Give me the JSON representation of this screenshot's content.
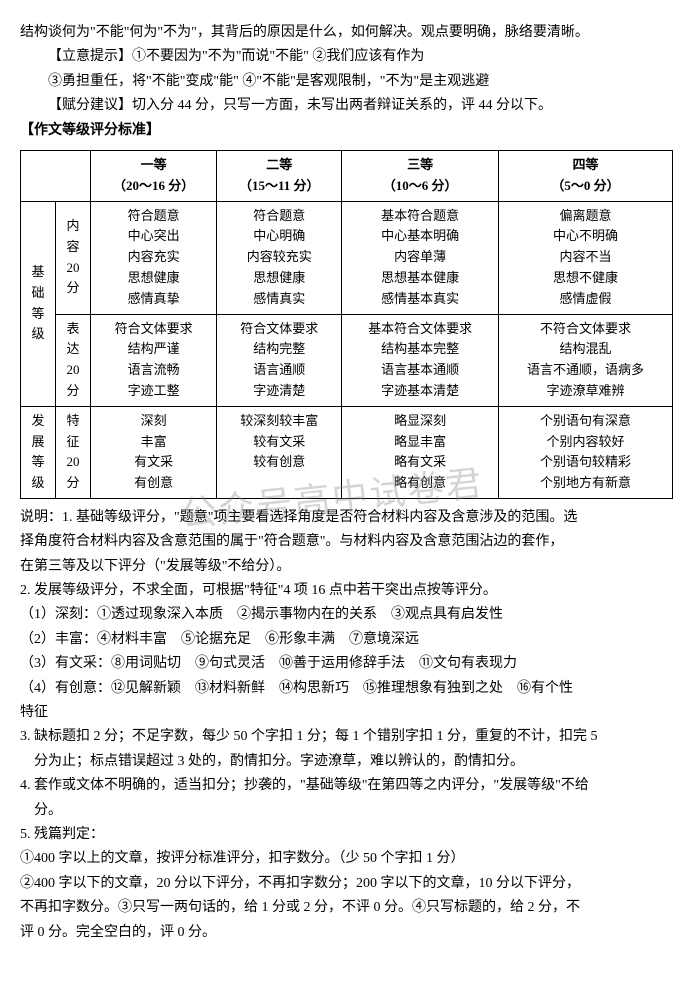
{
  "intro": {
    "line1": "结构谈何为\"不能\"何为\"不为\"，其背后的原因是什么，如何解决。观点要明确，脉络要清晰。",
    "hint_label": "【立意提示】",
    "hint1": "①不要因为\"不为\"而说\"不能\" ②我们应该有作为",
    "hint2": "③勇担重任，将\"不能\"变成\"能\" ④\"不能\"是客观限制，\"不为\"是主观逃避",
    "score_label": "【赋分建议】",
    "score_text": "切入分 44 分，只写一方面，未写出两者辩证关系的，评 44 分以下。",
    "table_title": "【作文等级评分标准】"
  },
  "table": {
    "col_headers": [
      {
        "t1": "一等",
        "t2": "（20～16 分）"
      },
      {
        "t1": "二等",
        "t2": "（15～11 分）"
      },
      {
        "t1": "三等",
        "t2": "（10～6 分）"
      },
      {
        "t1": "四等",
        "t2": "（5～0 分）"
      }
    ],
    "row_group1": "基础等级",
    "row1_label": "内容20分",
    "row1_cells": [
      [
        "符合题意",
        "中心突出",
        "内容充实",
        "思想健康",
        "感情真挚"
      ],
      [
        "符合题意",
        "中心明确",
        "内容较充实",
        "思想健康",
        "感情真实"
      ],
      [
        "基本符合题意",
        "中心基本明确",
        "内容单薄",
        "思想基本健康",
        "感情基本真实"
      ],
      [
        "偏离题意",
        "中心不明确",
        "内容不当",
        "思想不健康",
        "感情虚假"
      ]
    ],
    "row2_label": "表达20分",
    "row2_cells": [
      [
        "符合文体要求",
        "结构严谨",
        "语言流畅",
        "字迹工整"
      ],
      [
        "符合文体要求",
        "结构完整",
        "语言通顺",
        "字迹清楚"
      ],
      [
        "基本符合文体要求",
        "结构基本完整",
        "语言基本通顺",
        "字迹基本清楚"
      ],
      [
        "不符合文体要求",
        "结构混乱",
        "语言不通顺，语病多",
        "字迹潦草难辨"
      ]
    ],
    "row_group2": "发展等级",
    "row3_label": "特征20分",
    "row3_cells": [
      [
        "深刻",
        "丰富",
        "有文采",
        "有创意"
      ],
      [
        "较深刻较丰富",
        "较有文采",
        "较有创意"
      ],
      [
        "略显深刻",
        "略显丰富",
        "略有文采",
        "略有创意"
      ],
      [
        "个别语句有深意",
        "个别内容较好",
        "个别语句较精彩",
        "个别地方有新意"
      ]
    ]
  },
  "notes": {
    "n1a": "说明：1. 基础等级评分，\"题意\"项主要看选择角度是否符合材料内容及含意涉及的范围。选",
    "n1b": "择角度符合材料内容及含意范围的属于\"符合题意\"。与材料内容及含意范围沾边的套作，",
    "n1c": "在第三等及以下评分（\"发展等级\"不给分）。",
    "n2": "2. 发展等级评分，不求全面，可根据\"特征\"4 项 16 点中若干突出点按等评分。",
    "n2_1": "（1）深刻：①透过现象深入本质　②揭示事物内在的关系　③观点具有启发性",
    "n2_2": "（2）丰富：④材料丰富　⑤论据充足　⑥形象丰满　⑦意境深远",
    "n2_3": "（3）有文采：⑧用词贴切　⑨句式灵活　⑩善于运用修辞手法　⑪文句有表现力",
    "n2_4a": "（4）有创意：⑫见解新颖　⑬材料新鲜　⑭构思新巧　⑮推理想象有独到之处　⑯有个性",
    "n2_4b": "特征",
    "n3a": "3. 缺标题扣 2 分；不足字数，每少 50 个字扣 1 分；每 1 个错别字扣 1 分，重复的不计，扣完 5",
    "n3b": "　分为止；标点错误超过 3 处的，酌情扣分。字迹潦草，难以辨认的，酌情扣分。",
    "n4a": "4. 套作或文体不明确的，适当扣分；抄袭的，\"基础等级\"在第四等之内评分，\"发展等级\"不给",
    "n4b": "　分。",
    "n5": "5. 残篇判定：",
    "n5_1": "①400 字以上的文章，按评分标准评分，扣字数分。（少 50 个字扣 1 分）",
    "n5_2a": "②400 字以下的文章，20 分以下评分，不再扣字数分；200 字以下的文章，10 分以下评分，",
    "n5_2b": "不再扣字数分。③只写一两句话的，给 1 分或 2 分，不评 0 分。④只写标题的，给 2 分，不",
    "n5_2c": "评 0 分。完全空白的，评 0 分。"
  },
  "watermark": "公众号高中试卷君"
}
